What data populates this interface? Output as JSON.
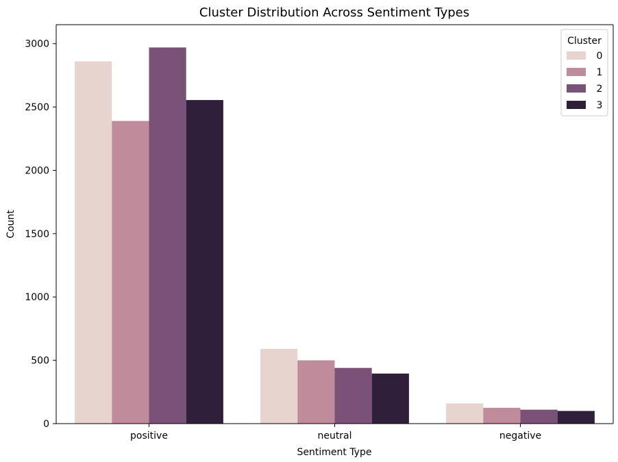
{
  "chart_data": {
    "type": "bar",
    "title": "Cluster Distribution Across Sentiment Types",
    "xlabel": "Sentiment Type",
    "ylabel": "Count",
    "categories": [
      "positive",
      "neutral",
      "negative"
    ],
    "ylim": [
      0,
      3150
    ],
    "yticks": [
      0,
      500,
      1000,
      1500,
      2000,
      2500,
      3000
    ],
    "grid": false,
    "legend": {
      "title": "Cluster",
      "placement": "top-right"
    },
    "series": [
      {
        "name": "0",
        "color": "#e8d4cf",
        "values": [
          2860,
          590,
          160
        ]
      },
      {
        "name": "1",
        "color": "#c08c9b",
        "values": [
          2390,
          500,
          125
        ]
      },
      {
        "name": "2",
        "color": "#7a5278",
        "values": [
          2970,
          440,
          110
        ]
      },
      {
        "name": "3",
        "color": "#2f1f3b",
        "values": [
          2555,
          395,
          100
        ]
      }
    ]
  }
}
